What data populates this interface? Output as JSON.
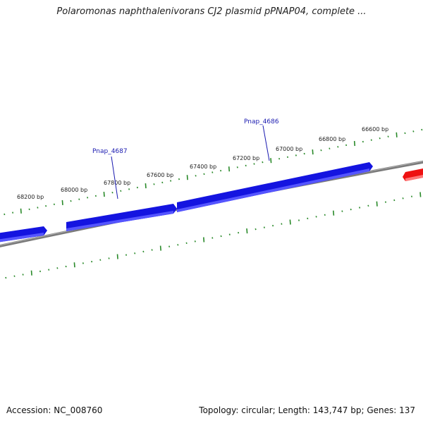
{
  "title": "Polaromonas naphthalenivorans CJ2 plasmid pPNAP04, complete ...",
  "footer": {
    "accession": "Accession: NC_008760",
    "stats": "Topology: circular; Length: 143,747 bp; Genes: 137"
  },
  "colors": {
    "backbone": "#7a7a7a",
    "tick": "#2a8a2a",
    "gene_forward": "#1414e0",
    "gene_reverse": "#ee1111",
    "label": "#1a1ab0"
  },
  "ruler_labels": [
    "68200 bp",
    "68000 bp",
    "67800 bp",
    "67600 bp",
    "67400 bp",
    "67200 bp",
    "67000 bp",
    "66800 bp",
    "66600 bp"
  ],
  "gene_labels": [
    "Pnap_4687",
    "Pnap_4686"
  ]
}
